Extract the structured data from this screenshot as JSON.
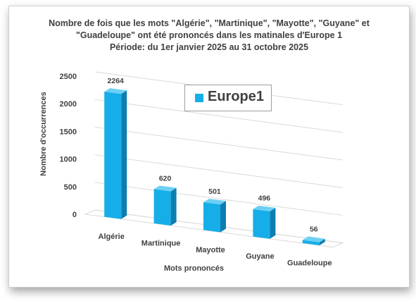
{
  "chart_data": {
    "type": "bar",
    "title_lines": [
      "Nombre  de fois que les mots \"Algérie\", \"Martinique\", \"Mayotte\", \"Guyane\" et",
      "\"Guadeloupe\" ont été prononcés dans les matinales d'Europe 1",
      "Période: du 1er janvier 2025 au 31 octobre 2025"
    ],
    "categories": [
      "Algérie",
      "Martinique",
      "Mayotte",
      "Guyane",
      "Guadeloupe"
    ],
    "series": [
      {
        "name": "Europe1",
        "values": [
          2264,
          620,
          501,
          496,
          56
        ]
      }
    ],
    "xlabel": "Mots prononcés",
    "ylabel": "Nombre d'occurrences",
    "ylim": [
      0,
      2500
    ],
    "yticks": [
      0,
      500,
      1000,
      1500,
      2000,
      2500
    ],
    "grid": true,
    "legend_position": "top-center",
    "style": "3d-column",
    "colors": {
      "bar_front": "#16aee8",
      "bar_side": "#0d7eb0",
      "bar_top": "#6dd0f3",
      "grid": "#d9d9d9",
      "text": "#404040"
    }
  }
}
